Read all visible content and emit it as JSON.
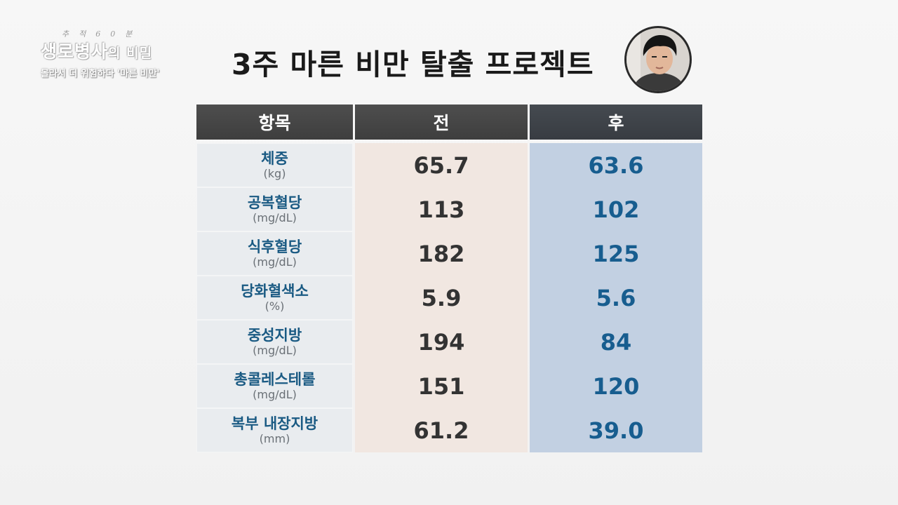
{
  "logo": {
    "small": "추적60분",
    "main": "생로병사",
    "main_suffix": "의 비밀",
    "subtitle": "몰라서 더 위험하다 '마른 비만'"
  },
  "title": "3주 마른 비만 탈출 프로젝트",
  "table": {
    "headers": [
      "항목",
      "전",
      "후"
    ],
    "rows": [
      {
        "label": "체중",
        "unit": "(kg)",
        "before": "65.7",
        "after": "63.6"
      },
      {
        "label": "공복혈당",
        "unit": "(mg/dL)",
        "before": "113",
        "after": "102"
      },
      {
        "label": "식후혈당",
        "unit": "(mg/dL)",
        "before": "182",
        "after": "125"
      },
      {
        "label": "당화혈색소",
        "unit": "(%)",
        "before": "5.9",
        "after": "5.6"
      },
      {
        "label": "중성지방",
        "unit": "(mg/dL)",
        "before": "194",
        "after": "84"
      },
      {
        "label": "총콜레스테롤",
        "unit": "(mg/dL)",
        "before": "151",
        "after": "120"
      },
      {
        "label": "복부 내장지방",
        "unit": "(mm)",
        "before": "61.2",
        "after": "39.0"
      }
    ]
  },
  "colors": {
    "header_dark": "#444444",
    "header_after": "#3e4248",
    "label_text": "#1a5a83",
    "before_bg": "#f1e7e1",
    "after_bg": "#c2d0e2",
    "after_text": "#175d8f"
  }
}
